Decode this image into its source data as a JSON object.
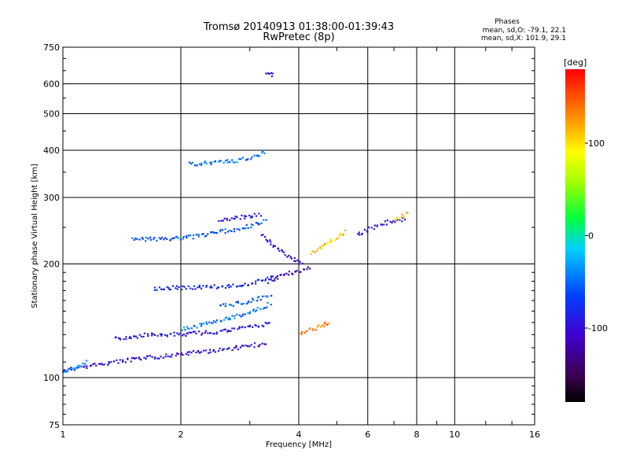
{
  "header": {
    "title": "Tromsø 20140913 01:38:00-01:39:43",
    "subtitle": "RwPretec (8p)",
    "phases_title": "Phases",
    "phases_o": "mean, sd,O: -79.1, 22.1",
    "phases_x": "mean, sd,X: 101.9, 29.1"
  },
  "colorbar": {
    "unit": "[deg]",
    "range": [
      -180,
      180
    ],
    "ticks": [
      {
        "value": 100,
        "label": "100"
      },
      {
        "value": 0,
        "label": "0"
      },
      {
        "value": -100,
        "label": "-100"
      }
    ]
  },
  "chart_data": {
    "type": "scatter",
    "title": "Tromsø 20140913 01:38:00-01:39:43",
    "subtitle": "RwPretec (8p)",
    "xlabel": "Frequency [MHz]",
    "ylabel": "Stationary phase Virtual Height [km]",
    "xscale": "log",
    "yscale": "log",
    "xlim": [
      1,
      16
    ],
    "ylim": [
      75,
      750
    ],
    "grid": true,
    "x_ticks": [
      1,
      2,
      4,
      6,
      8,
      10,
      16
    ],
    "x_tick_labels": [
      "1",
      "2",
      "4",
      "6",
      "8",
      "10",
      "16"
    ],
    "y_ticks": [
      75,
      100,
      200,
      300,
      400,
      500,
      600,
      750
    ],
    "y_tick_labels": [
      "75",
      "100",
      "200",
      "300",
      "400",
      "500",
      "600",
      "750"
    ],
    "color_scale": "rainbow, phase in degrees",
    "series": [
      {
        "traces": [
          {
            "x": [
              1.0,
              1.3,
              1.6,
              2.0,
              2.5,
              3.0,
              3.3
            ],
            "y": [
              105,
              110,
              113,
              116,
              119,
              122,
              124
            ],
            "phase": -95
          },
          {
            "x": [
              1.0,
              1.08,
              1.15
            ],
            "y": [
              103,
              107,
              111
            ],
            "phase": -30
          },
          {
            "x": [
              1.35,
              1.6,
              2.0,
              2.5,
              3.0,
              3.4
            ],
            "y": [
              127,
              130,
              131,
              133,
              137,
              140
            ],
            "phase": -90
          },
          {
            "x": [
              2.0,
              2.5,
              3.0,
              3.4
            ],
            "y": [
              135,
              142,
              150,
              158
            ],
            "phase": -45
          },
          {
            "x": [
              2.5,
              2.8,
              3.1,
              3.4
            ],
            "y": [
              155,
              158,
              162,
              166
            ],
            "phase": -55
          },
          {
            "x": [
              1.7,
              2.0,
              2.4,
              2.8,
              3.2,
              3.5
            ],
            "y": [
              173,
              174,
              175,
              176,
              181,
              186
            ],
            "phase": -80
          },
          {
            "x": [
              3.3,
              3.6,
              4.0,
              4.3
            ],
            "y": [
              180,
              187,
              193,
              196
            ],
            "phase": -110
          },
          {
            "x": [
              1.5,
              1.8,
              2.2,
              2.6,
              3.0,
              3.3
            ],
            "y": [
              234,
              234,
              238,
              246,
              253,
              262
            ],
            "phase": -60
          },
          {
            "x": [
              2.5,
              2.9,
              3.2
            ],
            "y": [
              262,
              268,
              272
            ],
            "phase": -95
          },
          {
            "x": [
              2.1,
              2.5,
              3.0,
              3.3
            ],
            "y": [
              370,
              373,
              382,
              400
            ],
            "phase": -50
          },
          {
            "x": [
              3.3,
              3.45
            ],
            "y": [
              635,
              640
            ],
            "phase": -95
          },
          {
            "x": [
              3.2,
              3.5,
              3.8,
              4.1
            ],
            "y": [
              240,
              220,
              210,
              200
            ],
            "phase": -100
          },
          {
            "x": [
              4.0,
              4.3,
              4.6,
              4.8
            ],
            "y": [
              130,
              135,
              138,
              142
            ],
            "phase": 135
          },
          {
            "x": [
              4.3,
              4.6,
              4.9,
              5.3
            ],
            "y": [
              215,
              225,
              235,
              245
            ],
            "phase": 110
          },
          {
            "x": [
              5.6,
              6.1,
              6.6,
              7.0,
              7.5
            ],
            "y": [
              240,
              250,
              258,
              262,
              265
            ],
            "phase": -90
          },
          {
            "x": [
              7.0,
              7.6
            ],
            "y": [
              265,
              275
            ],
            "phase": 110
          }
        ]
      }
    ]
  }
}
